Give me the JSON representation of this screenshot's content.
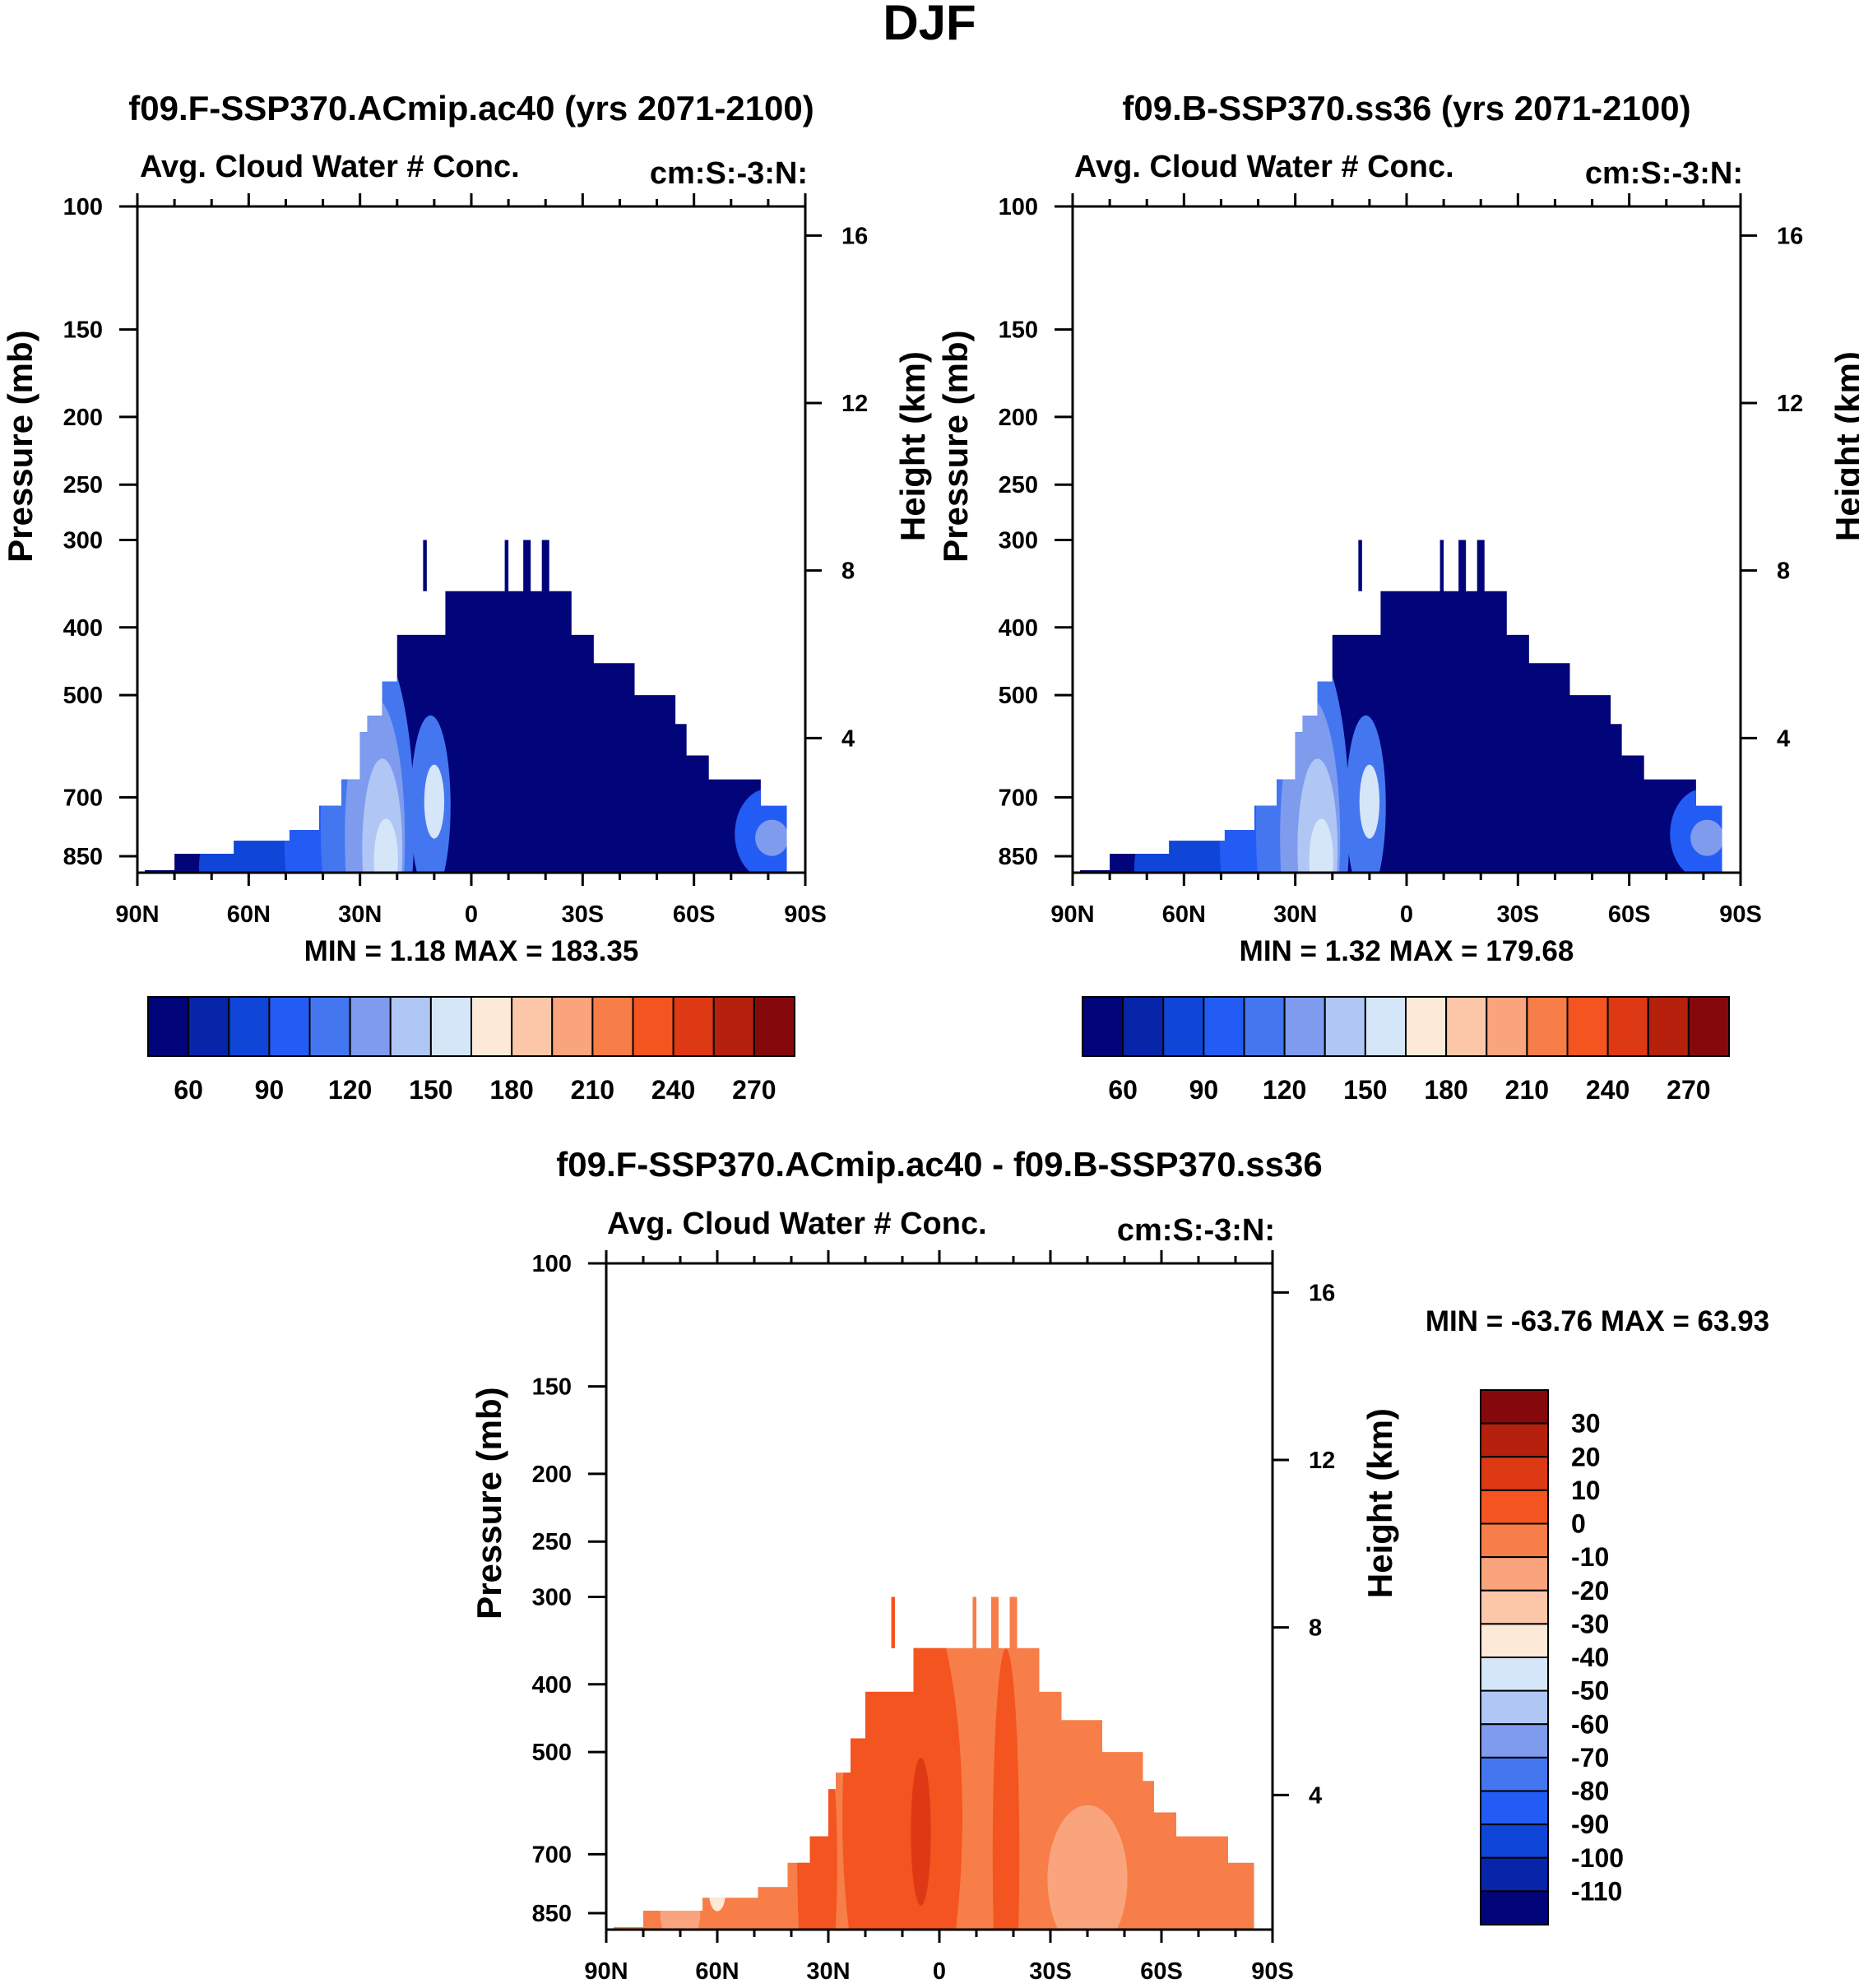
{
  "figure": {
    "title": "DJF"
  },
  "colors": {
    "abs_palette": [
      "#02057a",
      "#0625a8",
      "#0f46d8",
      "#235cf5",
      "#4477ef",
      "#7e9bee",
      "#b0c6f5",
      "#d5e6f9",
      "#fde9d8",
      "#fcc7a9",
      "#f9a47d",
      "#f77e48",
      "#f4541f",
      "#de3915",
      "#b5210d",
      "#85090b"
    ],
    "diff_palette": [
      "#02057a",
      "#0625a8",
      "#0f46d8",
      "#235cf5",
      "#4477ef",
      "#7e9bee",
      "#b0c6f5",
      "#d5e6f9",
      "#fde9d8",
      "#fcc7a9",
      "#f9a47d",
      "#f77e48",
      "#f4541f",
      "#de3915",
      "#b5210d",
      "#85090b"
    ]
  },
  "chart_data": [
    {
      "type": "heatmap",
      "title": "f09.F-SSP370.ACmip.ac40 (yrs 2071-2100)",
      "subtitle": "Avg. Cloud Water # Conc.",
      "units": "cm:S:-3:N:",
      "ylabel": "Pressure (mb)",
      "y2label": "Height (km)",
      "xticks": [
        "90N",
        "60N",
        "30N",
        "0",
        "30S",
        "60S",
        "90S"
      ],
      "yticks": [
        "100",
        "150",
        "200",
        "250",
        "300",
        "400",
        "500",
        "700",
        "850"
      ],
      "y2ticks": [
        "16",
        "12",
        "8",
        "4"
      ],
      "stats": {
        "min_label": "MIN =",
        "min_value": "1.18",
        "max_label": "MAX =",
        "max_value": "183.35"
      },
      "colorbar": {
        "labels": [
          "60",
          "90",
          "120",
          "150",
          "180",
          "210",
          "240",
          "270"
        ],
        "levels": 15
      },
      "ylim": [
        1000,
        100
      ],
      "xlim": [
        90,
        -90
      ]
    },
    {
      "type": "heatmap",
      "title": "f09.B-SSP370.ss36 (yrs 2071-2100)",
      "subtitle": "Avg. Cloud Water # Conc.",
      "units": "cm:S:-3:N:",
      "ylabel": "Pressure (mb)",
      "y2label": "Height (km)",
      "xticks": [
        "90N",
        "60N",
        "30N",
        "0",
        "30S",
        "60S",
        "90S"
      ],
      "yticks": [
        "100",
        "150",
        "200",
        "250",
        "300",
        "400",
        "500",
        "700",
        "850"
      ],
      "y2ticks": [
        "16",
        "12",
        "8",
        "4"
      ],
      "stats": {
        "min_label": "MIN =",
        "min_value": "1.32",
        "max_label": "MAX =",
        "max_value": "179.68"
      },
      "colorbar": {
        "labels": [
          "60",
          "90",
          "120",
          "150",
          "180",
          "210",
          "240",
          "270"
        ],
        "levels": 15
      },
      "ylim": [
        1000,
        100
      ],
      "xlim": [
        90,
        -90
      ]
    },
    {
      "type": "heatmap",
      "title": "f09.F-SSP370.ACmip.ac40 - f09.B-SSP370.ss36",
      "subtitle": "Avg. Cloud Water # Conc.",
      "units": "cm:S:-3:N:",
      "ylabel": "Pressure (mb)",
      "y2label": "Height (km)",
      "xticks": [
        "90N",
        "60N",
        "30N",
        "0",
        "30S",
        "60S",
        "90S"
      ],
      "yticks": [
        "100",
        "150",
        "200",
        "250",
        "300",
        "400",
        "500",
        "700",
        "850"
      ],
      "y2ticks": [
        "16",
        "12",
        "8",
        "4"
      ],
      "stats": {
        "min_label": "MIN =",
        "min_value": "-63.76",
        "max_label": "MAX =",
        "max_value": "63.93"
      },
      "colorbar": {
        "labels": [
          "30",
          "20",
          "10",
          "0",
          "-10",
          "-20",
          "-30",
          "-40",
          "-50",
          "-60",
          "-70",
          "-80",
          "-90",
          "-100",
          "-110"
        ],
        "levels": 16
      },
      "ylim": [
        1000,
        100
      ],
      "xlim": [
        90,
        -90
      ]
    }
  ]
}
